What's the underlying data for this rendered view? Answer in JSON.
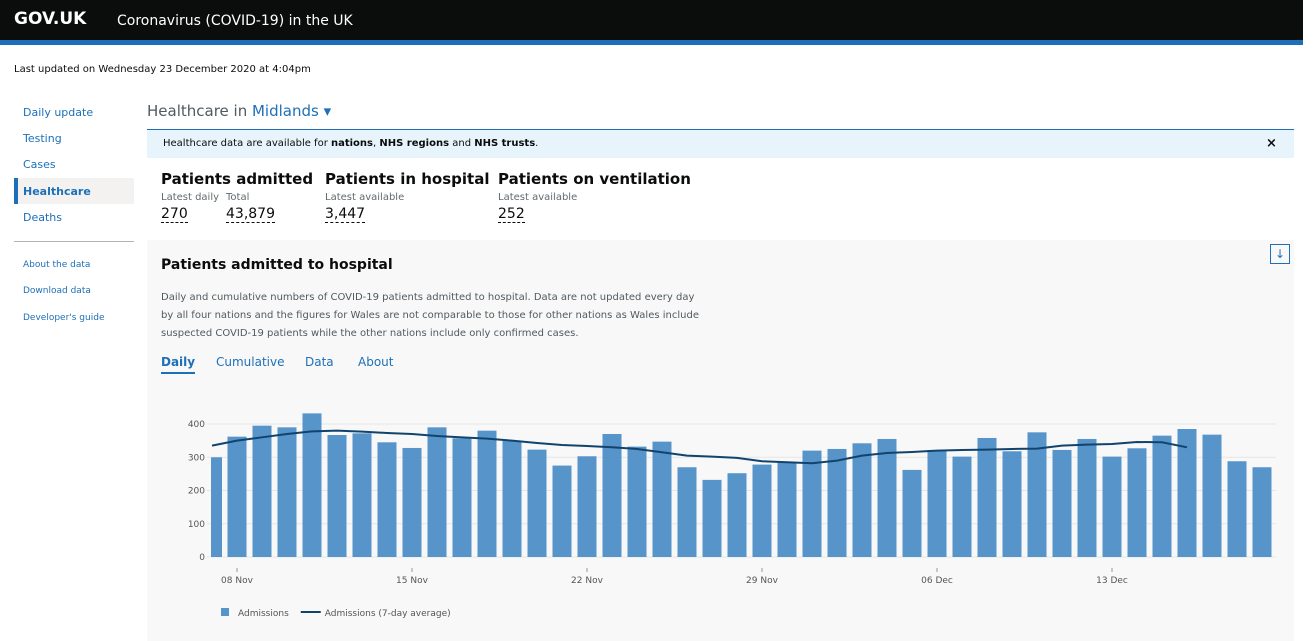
{
  "header": {
    "logo": "GOV.UK",
    "title": "Coronavirus (COVID-19) in the UK"
  },
  "updated": "Last updated on Wednesday 23 December 2020 at 4:04pm",
  "nav": {
    "main": [
      "Daily update",
      "Testing",
      "Cases",
      "Healthcare",
      "Deaths"
    ],
    "secondary": [
      "About the data",
      "Download data",
      "Developer's guide"
    ]
  },
  "page": {
    "heading": "Healthcare in",
    "area": "Midlands"
  },
  "banner": {
    "parts": [
      "Healthcare data are available for ",
      "nations",
      ", ",
      "NHS regions",
      " and ",
      "NHS trusts",
      "."
    ],
    "close": "×"
  },
  "metrics": [
    {
      "title": "Patients admitted",
      "items": [
        {
          "label": "Latest daily",
          "value": "270"
        },
        {
          "label": "Total",
          "value": "43,879"
        }
      ]
    },
    {
      "title": "Patients in hospital",
      "items": [
        {
          "label": "Latest available",
          "value": "3,447"
        }
      ]
    },
    {
      "title": "Patients on ventilation",
      "items": [
        {
          "label": "Latest available",
          "value": "252"
        }
      ]
    }
  ],
  "card": {
    "title": "Patients admitted to hospital",
    "description": "Daily and cumulative numbers of COVID-19 patients admitted to hospital. Data are not updated every day by all four nations and the figures for Wales are not comparable to those for other nations as Wales include suspected COVID-19 patients while the other nations include only confirmed cases.",
    "tabs": [
      "Daily",
      "Cumulative",
      "Data",
      "About"
    ]
  },
  "chart_data": {
    "type": "bar",
    "categories": [
      null,
      "08 Nov",
      null,
      null,
      null,
      null,
      null,
      null,
      "15 Nov",
      null,
      null,
      null,
      null,
      null,
      null,
      "22 Nov",
      null,
      null,
      null,
      null,
      null,
      null,
      "29 Nov",
      null,
      null,
      null,
      null,
      null,
      null,
      "06 Dec",
      null,
      null,
      null,
      null,
      null,
      null,
      "13 Dec",
      null,
      null,
      null,
      null,
      null,
      null
    ],
    "series": [
      {
        "name": "Admissions",
        "color": "#5694ca",
        "values": [
          300,
          362,
          395,
          390,
          432,
          367,
          372,
          345,
          328,
          390,
          357,
          380,
          350,
          323,
          275,
          303,
          370,
          332,
          347,
          270,
          232,
          252,
          278,
          285,
          320,
          325,
          342,
          355,
          262,
          322,
          302,
          358,
          318,
          375,
          322,
          355,
          302,
          327,
          365,
          385,
          368,
          288,
          270
        ]
      },
      {
        "name": "Admissions (7-day average)",
        "color": "#12436d",
        "type": "line",
        "values": [
          335,
          350,
          360,
          370,
          378,
          380,
          377,
          373,
          370,
          364,
          360,
          356,
          350,
          343,
          337,
          334,
          330,
          325,
          315,
          305,
          302,
          298,
          288,
          285,
          282,
          290,
          305,
          313,
          316,
          320,
          322,
          323,
          325,
          326,
          335,
          338,
          340,
          346,
          345,
          330,
          null,
          null,
          null
        ]
      }
    ],
    "ylim": [
      0,
      450
    ],
    "yticks": [
      0,
      100,
      200,
      300,
      400
    ],
    "grid": true,
    "legend": "bottom-left"
  }
}
